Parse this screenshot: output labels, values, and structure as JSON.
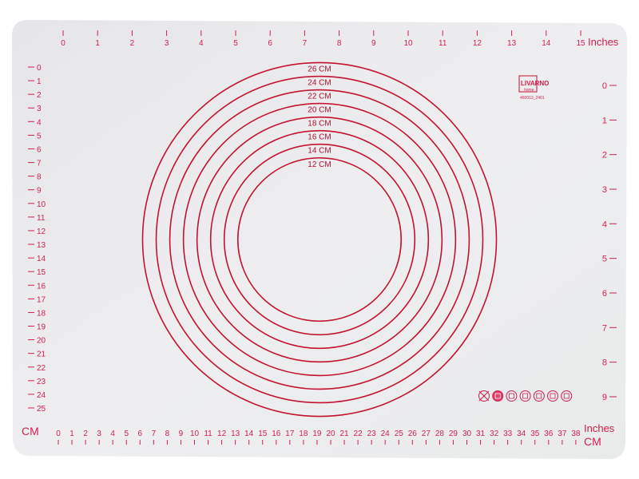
{
  "mat": {
    "background_color": "#ebebee",
    "accent_color": "#d21e4e",
    "circle_color": "#c4122f",
    "top_ruler": {
      "unit_label": "Inches",
      "ticks": [
        "0",
        "1",
        "2",
        "3",
        "4",
        "5",
        "6",
        "7",
        "8",
        "9",
        "10",
        "11",
        "12",
        "13",
        "14",
        "15"
      ]
    },
    "left_ruler": {
      "ticks": [
        "0",
        "1",
        "2",
        "3",
        "4",
        "5",
        "6",
        "7",
        "8",
        "9",
        "10",
        "11",
        "12",
        "13",
        "14",
        "15",
        "16",
        "17",
        "18",
        "19",
        "20",
        "21",
        "22",
        "23",
        "24",
        "25"
      ]
    },
    "right_ruler": {
      "ticks": [
        "0",
        "1",
        "2",
        "3",
        "4",
        "5",
        "6",
        "7",
        "8",
        "9"
      ]
    },
    "bottom_ruler": {
      "unit_label_left": "CM",
      "unit_label_inches": "Inches",
      "unit_label_cm": "CM",
      "ticks": [
        "0",
        "1",
        "2",
        "3",
        "4",
        "5",
        "6",
        "7",
        "8",
        "9",
        "10",
        "11",
        "12",
        "13",
        "14",
        "15",
        "16",
        "17",
        "18",
        "19",
        "20",
        "21",
        "22",
        "23",
        "24",
        "25",
        "26",
        "27",
        "28",
        "29",
        "30",
        "31",
        "32",
        "33",
        "34",
        "35",
        "36",
        "37",
        "38"
      ]
    },
    "circles": [
      {
        "label": "26 CM",
        "diameter_cm": 26
      },
      {
        "label": "24 CM",
        "diameter_cm": 24
      },
      {
        "label": "22 CM",
        "diameter_cm": 22
      },
      {
        "label": "20 CM",
        "diameter_cm": 20
      },
      {
        "label": "18 CM",
        "diameter_cm": 18
      },
      {
        "label": "16 CM",
        "diameter_cm": 16
      },
      {
        "label": "14 CM",
        "diameter_cm": 14
      },
      {
        "label": "12 CM",
        "diameter_cm": 12
      }
    ],
    "logo": {
      "brand": "LIVARNO",
      "sub": "home",
      "code": "460013_2401"
    },
    "care_icons": [
      "no-cutting-icon",
      "oven-icon",
      "dishwasher-icon",
      "freezer-icon",
      "food-safe-icon",
      "temp-max-icon",
      "temp-min-icon"
    ]
  }
}
